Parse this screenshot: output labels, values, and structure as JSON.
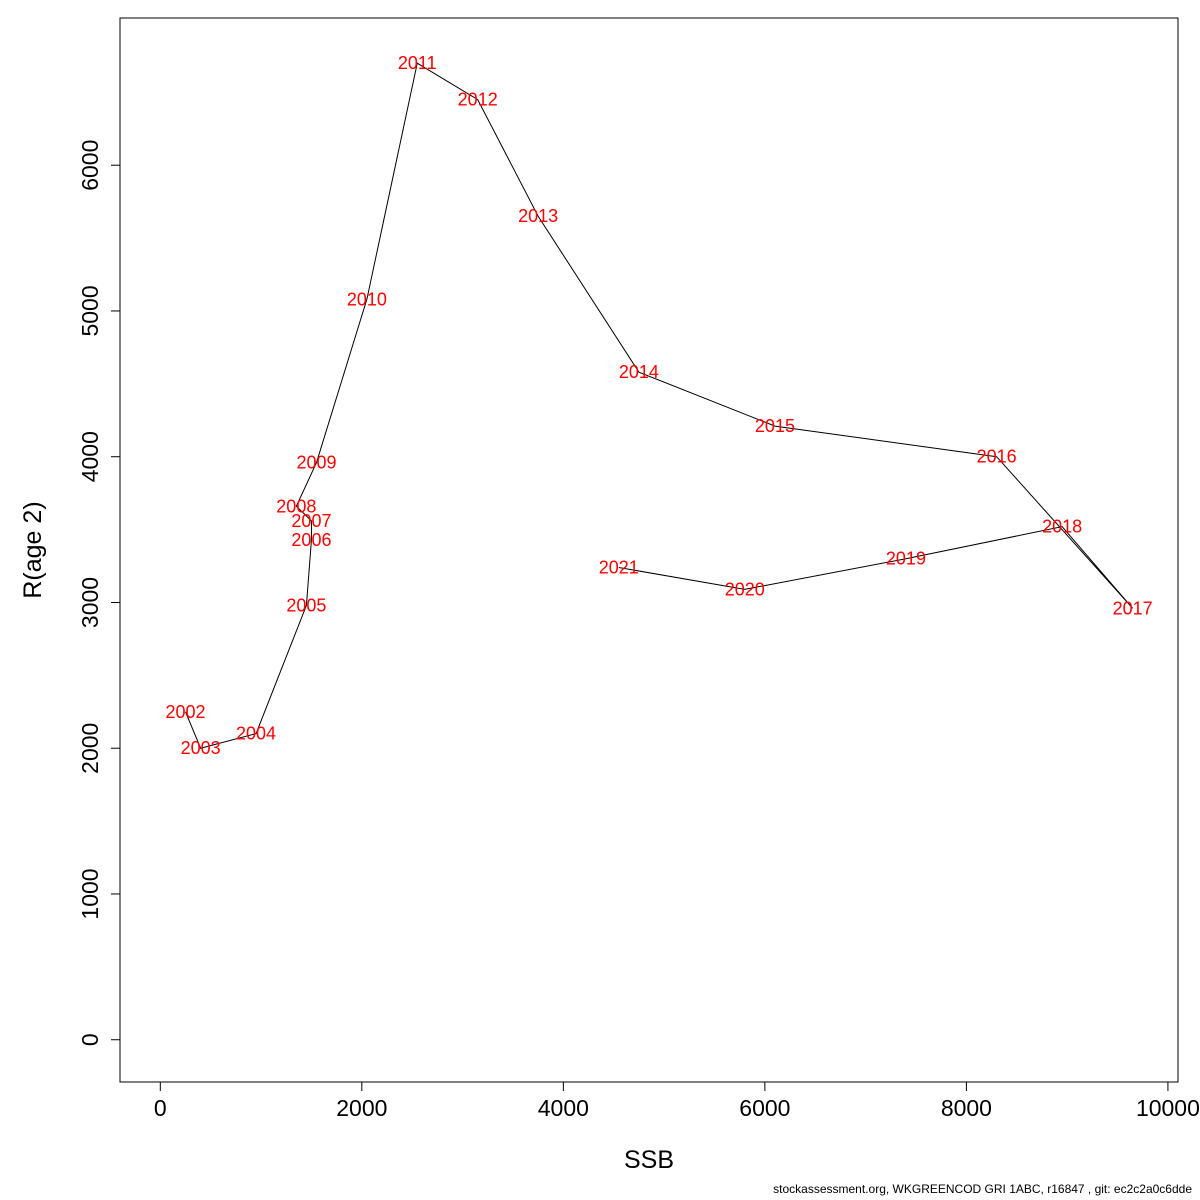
{
  "page": {
    "footer": "stockassessment.org, WKGREENCOD GRI 1ABC, r16847 , git: ec2c2a0c6dde"
  },
  "chart_data": {
    "type": "line",
    "title": "",
    "xlabel": "SSB",
    "ylabel": "R(age 2)",
    "xlim": [
      -400,
      10100
    ],
    "ylim": [
      -290,
      7010
    ],
    "x_ticks": [
      0,
      2000,
      4000,
      6000,
      8000,
      10000
    ],
    "y_ticks": [
      0,
      1000,
      2000,
      3000,
      4000,
      5000,
      6000
    ],
    "grid": false,
    "legend": "none",
    "line_color": "#000000",
    "label_color": "#ff0000",
    "points": [
      {
        "year": "2002",
        "ssb": 250,
        "r": 2250
      },
      {
        "year": "2003",
        "ssb": 400,
        "r": 2000
      },
      {
        "year": "2004",
        "ssb": 950,
        "r": 2100
      },
      {
        "year": "2005",
        "ssb": 1450,
        "r": 2980
      },
      {
        "year": "2006",
        "ssb": 1500,
        "r": 3430
      },
      {
        "year": "2007",
        "ssb": 1500,
        "r": 3560
      },
      {
        "year": "2008",
        "ssb": 1350,
        "r": 3660
      },
      {
        "year": "2009",
        "ssb": 1550,
        "r": 3960
      },
      {
        "year": "2010",
        "ssb": 2050,
        "r": 5080
      },
      {
        "year": "2011",
        "ssb": 2550,
        "r": 6700
      },
      {
        "year": "2012",
        "ssb": 3150,
        "r": 6450
      },
      {
        "year": "2013",
        "ssb": 3750,
        "r": 5650
      },
      {
        "year": "2014",
        "ssb": 4750,
        "r": 4580
      },
      {
        "year": "2015",
        "ssb": 6100,
        "r": 4210
      },
      {
        "year": "2016",
        "ssb": 8300,
        "r": 4000
      },
      {
        "year": "2017",
        "ssb": 9650,
        "r": 2960
      },
      {
        "year": "2018",
        "ssb": 8950,
        "r": 3520
      },
      {
        "year": "2019",
        "ssb": 7400,
        "r": 3300
      },
      {
        "year": "2020",
        "ssb": 5800,
        "r": 3090
      },
      {
        "year": "2021",
        "ssb": 4550,
        "r": 3240
      }
    ]
  }
}
